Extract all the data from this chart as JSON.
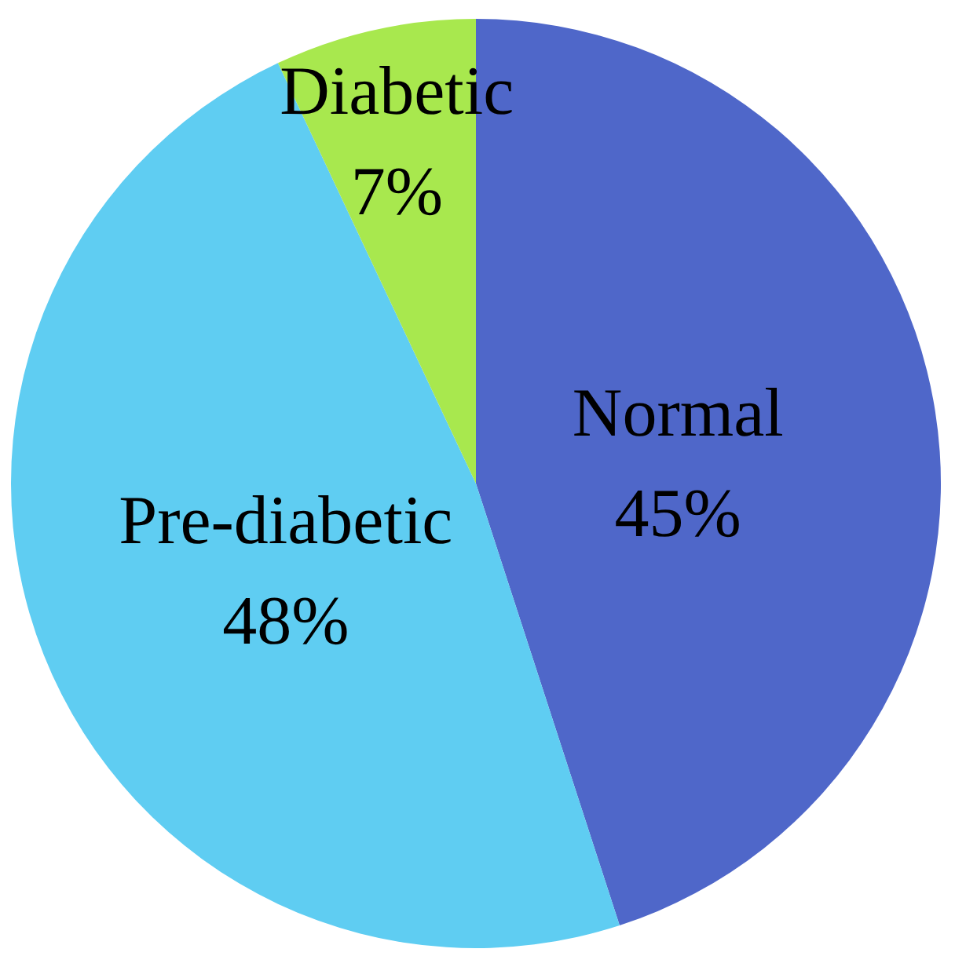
{
  "chart_data": {
    "type": "pie",
    "categories": [
      "Normal",
      "Pre-diabetic",
      "Diabetic"
    ],
    "values": [
      45,
      48,
      7
    ],
    "colors": [
      "#4f67c9",
      "#5fcdf2",
      "#a8e84e"
    ],
    "value_labels": [
      "45%",
      "48%",
      "7%"
    ]
  }
}
